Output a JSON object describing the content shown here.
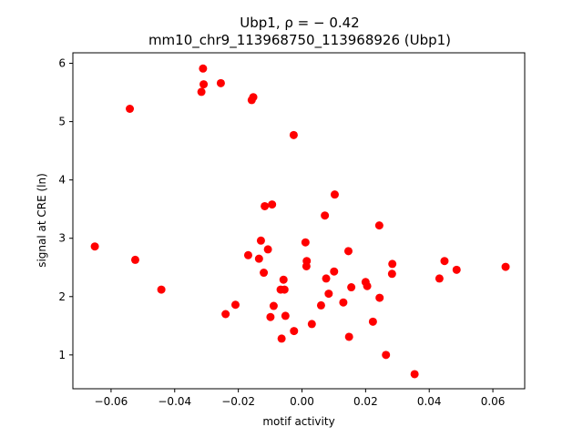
{
  "chart_data": {
    "type": "scatter",
    "title_line1": "Ubp1, ρ = − 0.42",
    "title_line2": "mm10_chr9_113968750_113968926 (Ubp1)",
    "xlabel": "motif activity",
    "ylabel": "signal at CRE (ln)",
    "xlim": [
      -0.072,
      0.07
    ],
    "ylim": [
      0.42,
      6.18
    ],
    "xticks": [
      -0.06,
      -0.04,
      -0.02,
      0.0,
      0.02,
      0.04,
      0.06
    ],
    "xtick_labels": [
      "−0.06",
      "−0.04",
      "−0.02",
      "0.00",
      "0.02",
      "0.04",
      "0.06"
    ],
    "yticks": [
      1,
      2,
      3,
      4,
      5,
      6
    ],
    "ytick_labels": [
      "1",
      "2",
      "3",
      "4",
      "5",
      "6"
    ],
    "grid": false,
    "marker_color": "#ff0000",
    "points": [
      {
        "x": -0.0311,
        "y": 5.91
      },
      {
        "x": -0.0309,
        "y": 5.64
      },
      {
        "x": -0.0316,
        "y": 5.51
      },
      {
        "x": -0.0255,
        "y": 5.66
      },
      {
        "x": -0.0541,
        "y": 5.22
      },
      {
        "x": -0.0153,
        "y": 5.42
      },
      {
        "x": -0.0158,
        "y": 5.37
      },
      {
        "x": -0.0026,
        "y": 4.77
      },
      {
        "x": 0.0103,
        "y": 3.75
      },
      {
        "x": -0.0117,
        "y": 3.55
      },
      {
        "x": -0.0094,
        "y": 3.58
      },
      {
        "x": 0.0072,
        "y": 3.39
      },
      {
        "x": 0.0243,
        "y": 3.22
      },
      {
        "x": -0.0651,
        "y": 2.86
      },
      {
        "x": -0.0129,
        "y": 2.96
      },
      {
        "x": -0.0107,
        "y": 2.81
      },
      {
        "x": 0.0011,
        "y": 2.93
      },
      {
        "x": 0.0146,
        "y": 2.78
      },
      {
        "x": -0.0169,
        "y": 2.71
      },
      {
        "x": -0.0135,
        "y": 2.65
      },
      {
        "x": -0.0524,
        "y": 2.63
      },
      {
        "x": 0.0015,
        "y": 2.61
      },
      {
        "x": 0.0014,
        "y": 2.52
      },
      {
        "x": 0.0448,
        "y": 2.61
      },
      {
        "x": 0.0284,
        "y": 2.56
      },
      {
        "x": 0.064,
        "y": 2.51
      },
      {
        "x": 0.0486,
        "y": 2.46
      },
      {
        "x": -0.012,
        "y": 2.41
      },
      {
        "x": 0.0101,
        "y": 2.43
      },
      {
        "x": 0.0283,
        "y": 2.39
      },
      {
        "x": 0.0076,
        "y": 2.31
      },
      {
        "x": 0.0432,
        "y": 2.31
      },
      {
        "x": -0.0058,
        "y": 2.29
      },
      {
        "x": 0.02,
        "y": 2.25
      },
      {
        "x": 0.0205,
        "y": 2.18
      },
      {
        "x": 0.0155,
        "y": 2.16
      },
      {
        "x": -0.0442,
        "y": 2.12
      },
      {
        "x": -0.0067,
        "y": 2.12
      },
      {
        "x": -0.0055,
        "y": 2.12
      },
      {
        "x": 0.0084,
        "y": 2.05
      },
      {
        "x": 0.0244,
        "y": 1.98
      },
      {
        "x": 0.013,
        "y": 1.9
      },
      {
        "x": -0.0209,
        "y": 1.86
      },
      {
        "x": 0.006,
        "y": 1.85
      },
      {
        "x": -0.0089,
        "y": 1.84
      },
      {
        "x": -0.024,
        "y": 1.7
      },
      {
        "x": -0.0052,
        "y": 1.67
      },
      {
        "x": -0.0099,
        "y": 1.65
      },
      {
        "x": 0.0223,
        "y": 1.57
      },
      {
        "x": 0.0031,
        "y": 1.53
      },
      {
        "x": -0.0025,
        "y": 1.41
      },
      {
        "x": 0.0148,
        "y": 1.31
      },
      {
        "x": -0.0064,
        "y": 1.28
      },
      {
        "x": 0.0264,
        "y": 1.0
      },
      {
        "x": 0.0354,
        "y": 0.67
      }
    ]
  }
}
